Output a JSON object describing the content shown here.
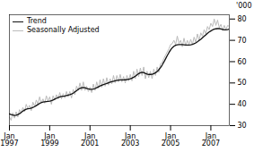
{
  "chart_data": {
    "type": "line",
    "ylabel": "'000",
    "categories": [
      "Jan\n1997",
      null,
      null,
      null,
      null,
      null,
      null,
      null,
      null,
      null,
      null,
      null,
      null,
      null,
      null,
      null,
      null,
      null,
      null,
      null,
      null,
      null,
      null,
      null,
      "Jan\n1999",
      null,
      null,
      null,
      null,
      null,
      null,
      null,
      null,
      null,
      null,
      null,
      null,
      null,
      null,
      null,
      null,
      null,
      null,
      null,
      null,
      null,
      null,
      null,
      "Jan\n2001",
      null,
      null,
      null,
      null,
      null,
      null,
      null,
      null,
      null,
      null,
      null,
      null,
      null,
      null,
      null,
      null,
      null,
      null,
      null,
      null,
      null,
      null,
      null,
      "Jan\n2003",
      null,
      null,
      null,
      null,
      null,
      null,
      null,
      null,
      null,
      null,
      null,
      null,
      null,
      null,
      null,
      null,
      null,
      null,
      null,
      null,
      null,
      null,
      null,
      "Jan\n2005",
      null,
      null,
      null,
      null,
      null,
      null,
      null,
      null,
      null,
      null,
      null,
      null,
      null,
      null,
      null,
      null,
      null,
      null,
      null,
      null,
      null,
      null,
      null,
      "Jan\n2007",
      null,
      null,
      null,
      null,
      null,
      null,
      null,
      null,
      null,
      null,
      null
    ],
    "series": [
      {
        "name": "Trend",
        "color": "#111111",
        "values": [
          35.5,
          35.2,
          35.0,
          34.8,
          34.9,
          35.2,
          35.6,
          36.2,
          36.8,
          37.3,
          37.7,
          37.9,
          38.0,
          38.2,
          38.5,
          38.9,
          39.4,
          39.9,
          40.4,
          40.8,
          41.1,
          41.2,
          41.3,
          41.4,
          41.5,
          41.7,
          42.0,
          42.4,
          42.8,
          43.2,
          43.5,
          43.7,
          43.8,
          43.9,
          44.1,
          44.3,
          44.5,
          44.8,
          45.2,
          45.8,
          46.4,
          47.0,
          47.5,
          47.8,
          47.9,
          47.8,
          47.5,
          47.2,
          47.0,
          47.0,
          47.1,
          47.4,
          47.8,
          48.2,
          48.6,
          48.9,
          49.2,
          49.5,
          49.8,
          50.1,
          50.4,
          50.6,
          50.8,
          51.0,
          51.2,
          51.3,
          51.4,
          51.4,
          51.4,
          51.5,
          51.6,
          51.8,
          52.0,
          52.3,
          52.7,
          53.2,
          53.8,
          54.4,
          54.8,
          55.0,
          54.9,
          54.5,
          54.2,
          54.0,
          54.0,
          54.1,
          54.4,
          54.8,
          55.4,
          56.2,
          57.2,
          58.4,
          59.8,
          61.3,
          62.8,
          64.2,
          65.5,
          66.5,
          67.2,
          67.7,
          67.9,
          68.0,
          68.0,
          68.0,
          67.9,
          67.8,
          67.8,
          67.8,
          67.9,
          68.1,
          68.4,
          68.8,
          69.3,
          69.9,
          70.5,
          71.2,
          71.9,
          72.6,
          73.3,
          73.9,
          74.4,
          74.9,
          75.2,
          75.4,
          75.5,
          75.5,
          75.3,
          75.1,
          74.9,
          74.9,
          75.0,
          75.3
        ]
      },
      {
        "name": "Seasonally Adjusted",
        "color": "#bbbbbb",
        "values": [
          34.0,
          32.5,
          36.0,
          33.5,
          36.5,
          34.0,
          37.5,
          36.0,
          38.5,
          36.5,
          40.0,
          38.0,
          39.5,
          37.0,
          41.0,
          39.0,
          42.0,
          40.0,
          43.5,
          40.5,
          42.5,
          40.5,
          44.0,
          41.5,
          43.5,
          40.0,
          44.0,
          42.0,
          44.5,
          42.5,
          45.5,
          42.5,
          45.0,
          43.0,
          46.0,
          43.5,
          46.0,
          43.0,
          47.0,
          44.5,
          48.5,
          46.5,
          50.0,
          46.5,
          50.5,
          46.5,
          48.5,
          46.0,
          48.0,
          45.5,
          49.5,
          46.5,
          50.5,
          47.5,
          51.5,
          48.0,
          52.0,
          48.5,
          52.5,
          49.0,
          52.0,
          49.5,
          53.5,
          50.0,
          53.5,
          50.5,
          54.0,
          50.5,
          53.0,
          50.0,
          53.5,
          51.0,
          54.0,
          51.0,
          55.5,
          52.0,
          56.5,
          53.0,
          57.0,
          53.5,
          57.5,
          52.0,
          55.5,
          52.5,
          55.5,
          52.0,
          56.5,
          53.5,
          57.5,
          55.0,
          59.0,
          59.5,
          61.5,
          63.0,
          64.5,
          66.0,
          68.0,
          68.5,
          70.0,
          68.0,
          72.0,
          68.5,
          70.0,
          67.0,
          71.0,
          67.5,
          70.0,
          68.0,
          70.5,
          68.0,
          71.5,
          69.0,
          73.0,
          70.0,
          73.5,
          72.0,
          75.0,
          73.0,
          76.5,
          75.0,
          78.0,
          76.5,
          80.0,
          77.0,
          79.5,
          76.0,
          77.5,
          74.5,
          77.0,
          75.0,
          77.0,
          76.5
        ]
      }
    ],
    "ylim": [
      30,
      82
    ],
    "yticks": [
      30,
      40,
      50,
      60,
      70,
      80
    ],
    "grid": false,
    "legend": "upper left"
  }
}
